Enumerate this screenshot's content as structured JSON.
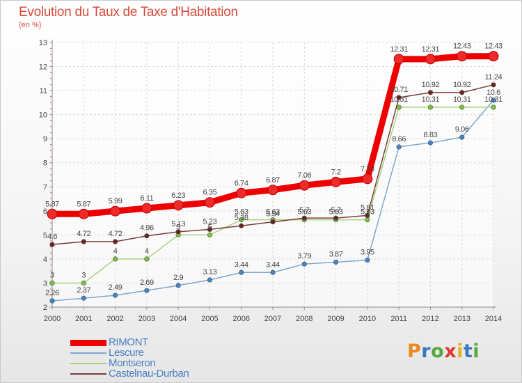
{
  "title": "Evolution du Taux de Taxe d'Habitation",
  "unit": "(en %)",
  "logo": {
    "letters": [
      "P",
      "r",
      "o",
      "x",
      "i",
      "t",
      "i"
    ],
    "colors": [
      "#e98a1e",
      "#3a78c2",
      "#56a83c",
      "#e0382e",
      "#e2b21c",
      "#3a78c2",
      "#56a83c"
    ]
  },
  "chart_data": {
    "type": "line",
    "title": "Evolution du Taux de Taxe d'Habitation",
    "ylabel": "(en %)",
    "xlabel": "",
    "x": [
      "2000",
      "2001",
      "2002",
      "2003",
      "2004",
      "2005",
      "2006",
      "2007",
      "2008",
      "2009",
      "2010",
      "2011",
      "2012",
      "2013",
      "2014"
    ],
    "ylim": [
      2,
      13
    ],
    "yticks": [
      "2",
      "3",
      "4",
      "5",
      "6",
      "7",
      "8",
      "9",
      "10",
      "11",
      "12",
      "13"
    ],
    "grid": true,
    "legend_position": "bottom-left",
    "series": [
      {
        "name": "RIMONT",
        "color": "#ee0000",
        "marker_color": "#ee2a2a",
        "bold": true,
        "values": [
          5.87,
          5.87,
          5.99,
          6.11,
          6.23,
          6.35,
          6.74,
          6.87,
          7.06,
          7.2,
          7.33,
          12.31,
          12.31,
          12.43,
          12.43
        ],
        "labels": [
          "5.87",
          "5.87",
          "5.99",
          "6.11",
          "6.23",
          "6.35",
          "6.74",
          "6.87",
          "7.06",
          "7.2",
          "7.33",
          "12.31",
          "12.31",
          "12.43",
          "12.43"
        ]
      },
      {
        "name": "Lescure",
        "color": "#7fa7cc",
        "marker_color": "#3f86c8",
        "bold": false,
        "values": [
          2.26,
          2.37,
          2.49,
          2.69,
          2.9,
          3.13,
          3.44,
          3.44,
          3.79,
          3.87,
          3.95,
          8.66,
          8.83,
          9.06,
          10.6
        ],
        "labels": [
          "2.26",
          "2.37",
          "2.49",
          "2.69",
          "2.9",
          "3.13",
          "3.44",
          "3.44",
          "3.79",
          "3.87",
          "3.95",
          "8.66",
          "8.83",
          "9.06",
          "10.6"
        ]
      },
      {
        "name": "Montseron",
        "color": "#a8d27a",
        "marker_color": "#78c23c",
        "bold": false,
        "values": [
          3,
          3,
          4,
          4,
          5,
          5,
          5.63,
          5.63,
          5.63,
          5.63,
          5.63,
          10.31,
          10.31,
          10.31,
          10.31
        ],
        "labels": [
          "3",
          "3",
          "4",
          "4",
          "5",
          "5",
          "5.63",
          "5.63",
          "5.63",
          "5.63",
          "5.63",
          "10.31",
          "10.31",
          "10.31",
          "10.31"
        ]
      },
      {
        "name": "Castelnau-Durban",
        "color": "#7a3c3c",
        "marker_color": "#6a2424",
        "bold": false,
        "values": [
          4.6,
          4.72,
          4.72,
          4.96,
          5.13,
          5.23,
          5.38,
          5.54,
          5.7,
          5.7,
          5.81,
          10.71,
          10.92,
          10.92,
          11.24
        ],
        "labels": [
          "4.6",
          "4.72",
          "4.72",
          "4.96",
          "5.13",
          "5.23",
          "5.38",
          "5.54",
          "5.7",
          "5.7",
          "5.81",
          "10.71",
          "10.92",
          "10.92",
          "11.24"
        ]
      }
    ]
  }
}
